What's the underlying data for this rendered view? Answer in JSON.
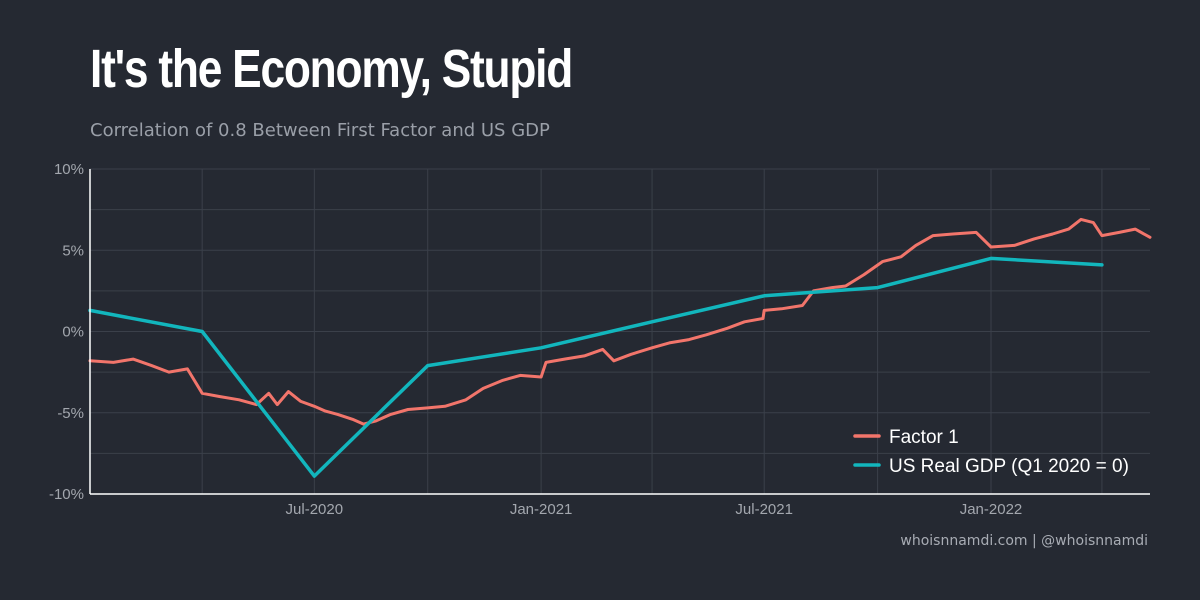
{
  "header": {
    "title": "It's the Economy, Stupid",
    "subtitle": "Correlation of 0.8 Between First Factor and US GDP"
  },
  "footer": {
    "credit": "whoisnnamdi.com | @whoisnnamdi"
  },
  "colors": {
    "background": "#252932",
    "factor": "#f2756b",
    "gdp": "#12b6bd",
    "grid": "#3b404a",
    "axis": "#ffffff"
  },
  "chart_data": {
    "type": "line",
    "title": "It's the Economy, Stupid",
    "subtitle": "Correlation of 0.8 Between First Factor and US GDP",
    "xlim": [
      "2020-01-01",
      "2022-05-10"
    ],
    "ylim": [
      -10,
      10
    ],
    "y_ticks": [
      -10,
      -5,
      0,
      5,
      10
    ],
    "y_tick_labels": [
      "-10%",
      "-5%",
      "0%",
      "5%",
      "10%"
    ],
    "x_ticks": [
      "2020-07-01",
      "2021-01-01",
      "2021-07-01",
      "2022-01-01"
    ],
    "x_tick_labels": [
      "Jul-2020",
      "Jan-2021",
      "Jul-2021",
      "Jan-2022"
    ],
    "grid": true,
    "legend_position": "bottom-right",
    "series": [
      {
        "name": "Factor 1",
        "color": "#f2756b",
        "points": [
          [
            "2020-01-01",
            -1.8
          ],
          [
            "2020-01-20",
            -1.9
          ],
          [
            "2020-02-05",
            -1.7
          ],
          [
            "2020-02-20",
            -2.1
          ],
          [
            "2020-03-05",
            -2.5
          ],
          [
            "2020-03-20",
            -2.3
          ],
          [
            "2020-04-01",
            -3.8
          ],
          [
            "2020-04-15",
            -4.0
          ],
          [
            "2020-05-01",
            -4.2
          ],
          [
            "2020-05-15",
            -4.5
          ],
          [
            "2020-05-25",
            -3.8
          ],
          [
            "2020-06-01",
            -4.5
          ],
          [
            "2020-06-10",
            -3.7
          ],
          [
            "2020-06-20",
            -4.3
          ],
          [
            "2020-07-01",
            -4.6
          ],
          [
            "2020-07-10",
            -4.9
          ],
          [
            "2020-07-20",
            -5.1
          ],
          [
            "2020-08-01",
            -5.4
          ],
          [
            "2020-08-10",
            -5.7
          ],
          [
            "2020-08-20",
            -5.5
          ],
          [
            "2020-09-01",
            -5.1
          ],
          [
            "2020-09-15",
            -4.8
          ],
          [
            "2020-10-01",
            -4.7
          ],
          [
            "2020-10-15",
            -4.6
          ],
          [
            "2020-11-01",
            -4.2
          ],
          [
            "2020-11-15",
            -3.5
          ],
          [
            "2020-12-01",
            -3.0
          ],
          [
            "2020-12-15",
            -2.7
          ],
          [
            "2021-01-01",
            -2.8
          ],
          [
            "2021-01-05",
            -1.9
          ],
          [
            "2021-01-20",
            -1.7
          ],
          [
            "2021-02-05",
            -1.5
          ],
          [
            "2021-02-20",
            -1.1
          ],
          [
            "2021-03-01",
            -1.8
          ],
          [
            "2021-03-15",
            -1.4
          ],
          [
            "2021-04-01",
            -1.0
          ],
          [
            "2021-04-15",
            -0.7
          ],
          [
            "2021-05-01",
            -0.5
          ],
          [
            "2021-05-15",
            -0.2
          ],
          [
            "2021-06-01",
            0.2
          ],
          [
            "2021-06-15",
            0.6
          ],
          [
            "2021-06-30",
            0.8
          ],
          [
            "2021-07-01",
            1.3
          ],
          [
            "2021-07-15",
            1.4
          ],
          [
            "2021-08-01",
            1.6
          ],
          [
            "2021-08-10",
            2.5
          ],
          [
            "2021-08-25",
            2.7
          ],
          [
            "2021-09-05",
            2.8
          ],
          [
            "2021-09-20",
            3.5
          ],
          [
            "2021-10-05",
            4.3
          ],
          [
            "2021-10-20",
            4.6
          ],
          [
            "2021-11-01",
            5.3
          ],
          [
            "2021-11-15",
            5.9
          ],
          [
            "2021-12-01",
            6.0
          ],
          [
            "2021-12-20",
            6.1
          ],
          [
            "2022-01-01",
            5.2
          ],
          [
            "2022-01-20",
            5.3
          ],
          [
            "2022-02-05",
            5.7
          ],
          [
            "2022-02-20",
            6.0
          ],
          [
            "2022-03-05",
            6.3
          ],
          [
            "2022-03-15",
            6.9
          ],
          [
            "2022-03-25",
            6.7
          ],
          [
            "2022-04-01",
            5.9
          ],
          [
            "2022-04-15",
            6.1
          ],
          [
            "2022-04-28",
            6.3
          ],
          [
            "2022-05-10",
            5.8
          ]
        ]
      },
      {
        "name": "US Real GDP (Q1 2020 = 0)",
        "color": "#12b6bd",
        "points": [
          [
            "2020-01-01",
            1.3
          ],
          [
            "2020-04-01",
            0.0
          ],
          [
            "2020-07-01",
            -8.9
          ],
          [
            "2020-10-01",
            -2.1
          ],
          [
            "2021-01-01",
            -1.0
          ],
          [
            "2021-04-01",
            0.6
          ],
          [
            "2021-07-01",
            2.2
          ],
          [
            "2021-10-01",
            2.7
          ],
          [
            "2022-01-01",
            4.5
          ],
          [
            "2022-04-01",
            4.1
          ]
        ]
      }
    ]
  }
}
